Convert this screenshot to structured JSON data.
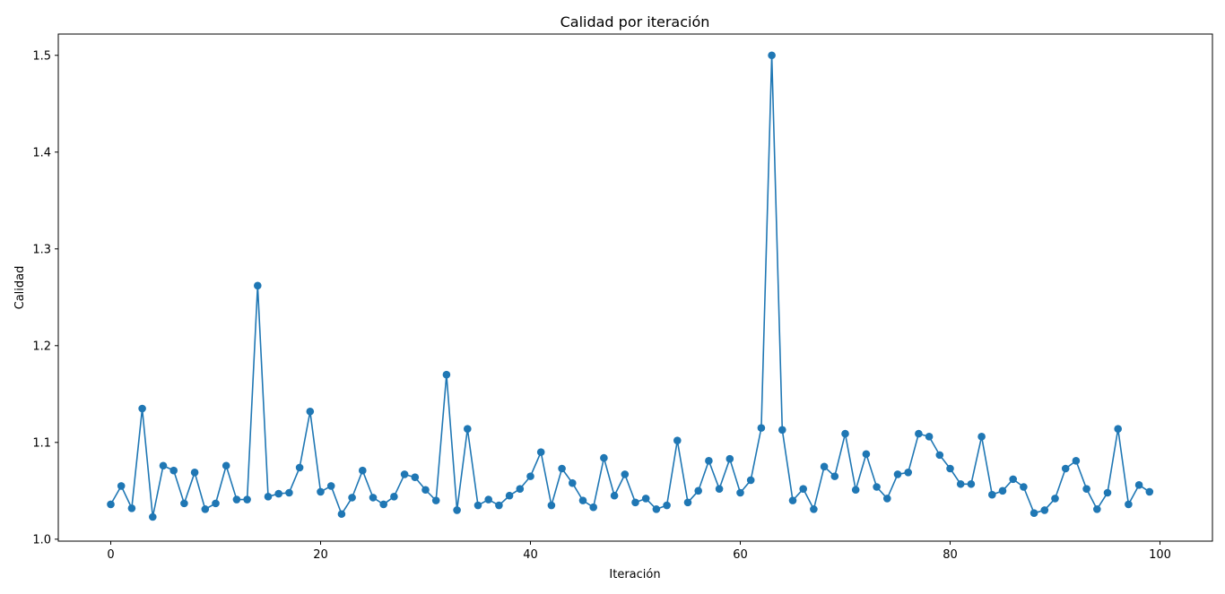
{
  "chart_data": {
    "type": "line",
    "title": "Calidad por iteración",
    "xlabel": "Iteración",
    "ylabel": "Calidad",
    "xlim": [
      -5,
      105
    ],
    "ylim": [
      0.998,
      1.522
    ],
    "xticks": [
      0,
      20,
      40,
      60,
      80,
      100
    ],
    "yticks": [
      1.0,
      1.1,
      1.2,
      1.3,
      1.4,
      1.5
    ],
    "xtick_labels": [
      "0",
      "20",
      "40",
      "60",
      "80",
      "100"
    ],
    "ytick_labels": [
      "1.0",
      "1.1",
      "1.2",
      "1.3",
      "1.4",
      "1.5"
    ],
    "grid": false,
    "marker": "circle",
    "color": "#1f77b4",
    "series": [
      {
        "values": [
          1.036,
          1.055,
          1.032,
          1.135,
          1.023,
          1.076,
          1.071,
          1.037,
          1.069,
          1.031,
          1.037,
          1.076,
          1.041,
          1.041,
          1.262,
          1.044,
          1.047,
          1.048,
          1.074,
          1.132,
          1.049,
          1.055,
          1.026,
          1.043,
          1.071,
          1.043,
          1.036,
          1.044,
          1.067,
          1.064,
          1.051,
          1.04,
          1.17,
          1.03,
          1.114,
          1.035,
          1.041,
          1.035,
          1.045,
          1.052,
          1.065,
          1.09,
          1.035,
          1.073,
          1.058,
          1.04,
          1.033,
          1.084,
          1.045,
          1.067,
          1.038,
          1.042,
          1.031,
          1.035,
          1.102,
          1.038,
          1.05,
          1.081,
          1.052,
          1.083,
          1.048,
          1.061,
          1.115,
          1.5,
          1.113,
          1.04,
          1.052,
          1.031,
          1.075,
          1.065,
          1.109,
          1.051,
          1.088,
          1.054,
          1.042,
          1.067,
          1.069,
          1.109,
          1.106,
          1.087,
          1.073,
          1.057,
          1.057,
          1.106,
          1.046,
          1.05,
          1.062,
          1.054,
          1.027,
          1.03,
          1.042,
          1.073,
          1.081,
          1.052,
          1.031,
          1.048,
          1.114,
          1.036,
          1.056,
          1.049
        ]
      }
    ]
  }
}
